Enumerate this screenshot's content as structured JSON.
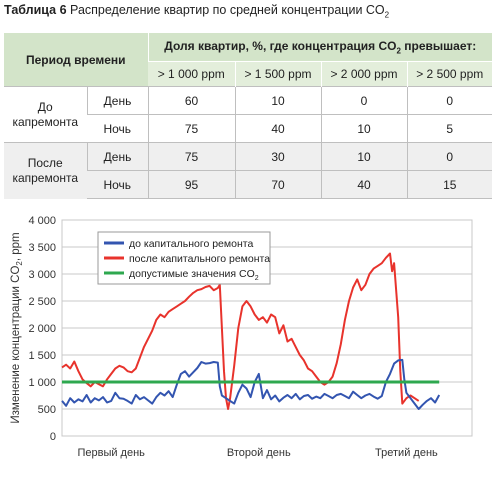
{
  "table": {
    "caption_bold": "Таблица 6",
    "caption_text": "Распределение квартир по средней концентрации CO",
    "caption_sub": "2",
    "header_period": "Период времени",
    "header_share": "Доля квартир, %, где концентрация CO",
    "header_share_sub": "2",
    "header_share_end": " превышает:",
    "thresholds": [
      "> 1 000 ppm",
      "> 1 500 ppm",
      "> 2 000 ppm",
      "> 2 500 ppm"
    ],
    "groups": [
      {
        "period": "До капремонта",
        "rows": [
          {
            "time": "День",
            "values": [
              "60",
              "10",
              "0",
              "0"
            ]
          },
          {
            "time": "Ночь",
            "values": [
              "75",
              "40",
              "10",
              "5"
            ]
          }
        ]
      },
      {
        "period": "После капремонта",
        "rows": [
          {
            "time": "День",
            "values": [
              "75",
              "30",
              "10",
              "0"
            ]
          },
          {
            "time": "Ночь",
            "values": [
              "95",
              "70",
              "40",
              "15"
            ]
          }
        ]
      }
    ]
  },
  "chart_data": {
    "type": "line",
    "ylabel": "Изменение концентрации CO",
    "ylabel_sub": "2",
    "ylabel_end": ", ppm",
    "ylim": [
      0,
      4000
    ],
    "yticks": [
      "0",
      "500",
      "1 000",
      "1 500",
      "2 000",
      "2 500",
      "3 000",
      "3 500",
      "4 000"
    ],
    "xticks": [
      "Первый день",
      "Второй день",
      "Третий день"
    ],
    "legend_position": "top-left",
    "grid": true,
    "series": [
      {
        "name": "до капитального ремонта",
        "color": "#3355b0",
        "points": [
          [
            0.0,
            650
          ],
          [
            0.01,
            560
          ],
          [
            0.02,
            700
          ],
          [
            0.03,
            620
          ],
          [
            0.04,
            680
          ],
          [
            0.05,
            640
          ],
          [
            0.06,
            760
          ],
          [
            0.07,
            620
          ],
          [
            0.08,
            700
          ],
          [
            0.09,
            660
          ],
          [
            0.1,
            720
          ],
          [
            0.11,
            620
          ],
          [
            0.12,
            650
          ],
          [
            0.13,
            800
          ],
          [
            0.14,
            700
          ],
          [
            0.15,
            690
          ],
          [
            0.16,
            650
          ],
          [
            0.17,
            600
          ],
          [
            0.18,
            760
          ],
          [
            0.19,
            680
          ],
          [
            0.2,
            720
          ],
          [
            0.21,
            660
          ],
          [
            0.22,
            600
          ],
          [
            0.23,
            720
          ],
          [
            0.24,
            800
          ],
          [
            0.25,
            750
          ],
          [
            0.26,
            830
          ],
          [
            0.27,
            720
          ],
          [
            0.28,
            950
          ],
          [
            0.29,
            1150
          ],
          [
            0.3,
            1200
          ],
          [
            0.31,
            1100
          ],
          [
            0.32,
            1180
          ],
          [
            0.33,
            1260
          ],
          [
            0.34,
            1370
          ],
          [
            0.35,
            1340
          ],
          [
            0.36,
            1350
          ],
          [
            0.37,
            1370
          ],
          [
            0.38,
            1360
          ],
          [
            0.385,
            920
          ],
          [
            0.39,
            750
          ],
          [
            0.4,
            700
          ],
          [
            0.41,
            650
          ],
          [
            0.42,
            600
          ],
          [
            0.43,
            800
          ],
          [
            0.44,
            950
          ],
          [
            0.45,
            880
          ],
          [
            0.46,
            720
          ],
          [
            0.47,
            1000
          ],
          [
            0.48,
            1150
          ],
          [
            0.49,
            700
          ],
          [
            0.5,
            850
          ],
          [
            0.51,
            680
          ],
          [
            0.52,
            750
          ],
          [
            0.53,
            640
          ],
          [
            0.54,
            710
          ],
          [
            0.55,
            760
          ],
          [
            0.56,
            700
          ],
          [
            0.57,
            780
          ],
          [
            0.58,
            680
          ],
          [
            0.59,
            740
          ],
          [
            0.6,
            760
          ],
          [
            0.61,
            690
          ],
          [
            0.62,
            730
          ],
          [
            0.63,
            700
          ],
          [
            0.64,
            780
          ],
          [
            0.65,
            740
          ],
          [
            0.66,
            700
          ],
          [
            0.67,
            760
          ],
          [
            0.68,
            780
          ],
          [
            0.69,
            740
          ],
          [
            0.7,
            700
          ],
          [
            0.71,
            820
          ],
          [
            0.72,
            760
          ],
          [
            0.73,
            700
          ],
          [
            0.74,
            750
          ],
          [
            0.75,
            780
          ],
          [
            0.76,
            730
          ],
          [
            0.77,
            690
          ],
          [
            0.78,
            740
          ],
          [
            0.79,
            1000
          ],
          [
            0.8,
            1150
          ],
          [
            0.81,
            1340
          ],
          [
            0.82,
            1400
          ],
          [
            0.83,
            1410
          ],
          [
            0.835,
            1050
          ],
          [
            0.84,
            800
          ],
          [
            0.85,
            700
          ],
          [
            0.86,
            600
          ],
          [
            0.87,
            500
          ],
          [
            0.88,
            580
          ],
          [
            0.89,
            650
          ],
          [
            0.9,
            700
          ],
          [
            0.91,
            620
          ],
          [
            0.92,
            760
          ]
        ]
      },
      {
        "name": "после капитального ремонта",
        "color": "#e8332c",
        "points": [
          [
            0.0,
            1270
          ],
          [
            0.01,
            1320
          ],
          [
            0.02,
            1250
          ],
          [
            0.03,
            1380
          ],
          [
            0.04,
            1200
          ],
          [
            0.05,
            1050
          ],
          [
            0.06,
            980
          ],
          [
            0.07,
            920
          ],
          [
            0.08,
            1000
          ],
          [
            0.09,
            960
          ],
          [
            0.1,
            920
          ],
          [
            0.11,
            1050
          ],
          [
            0.12,
            1150
          ],
          [
            0.13,
            1250
          ],
          [
            0.14,
            1300
          ],
          [
            0.15,
            1270
          ],
          [
            0.16,
            1200
          ],
          [
            0.17,
            1180
          ],
          [
            0.18,
            1250
          ],
          [
            0.19,
            1450
          ],
          [
            0.2,
            1650
          ],
          [
            0.21,
            1800
          ],
          [
            0.22,
            1950
          ],
          [
            0.23,
            2150
          ],
          [
            0.24,
            2250
          ],
          [
            0.25,
            2200
          ],
          [
            0.26,
            2300
          ],
          [
            0.27,
            2350
          ],
          [
            0.28,
            2400
          ],
          [
            0.29,
            2450
          ],
          [
            0.3,
            2500
          ],
          [
            0.31,
            2580
          ],
          [
            0.32,
            2650
          ],
          [
            0.33,
            2700
          ],
          [
            0.34,
            2720
          ],
          [
            0.35,
            2760
          ],
          [
            0.36,
            2780
          ],
          [
            0.37,
            2700
          ],
          [
            0.38,
            2740
          ],
          [
            0.385,
            2800
          ],
          [
            0.39,
            2000
          ],
          [
            0.395,
            1200
          ],
          [
            0.4,
            700
          ],
          [
            0.405,
            500
          ],
          [
            0.41,
            700
          ],
          [
            0.42,
            1300
          ],
          [
            0.43,
            2000
          ],
          [
            0.44,
            2400
          ],
          [
            0.45,
            2500
          ],
          [
            0.46,
            2400
          ],
          [
            0.47,
            2250
          ],
          [
            0.48,
            2150
          ],
          [
            0.49,
            2200
          ],
          [
            0.5,
            2100
          ],
          [
            0.51,
            2250
          ],
          [
            0.52,
            2200
          ],
          [
            0.53,
            1900
          ],
          [
            0.54,
            2050
          ],
          [
            0.55,
            1750
          ],
          [
            0.56,
            1800
          ],
          [
            0.57,
            1650
          ],
          [
            0.58,
            1500
          ],
          [
            0.59,
            1400
          ],
          [
            0.6,
            1250
          ],
          [
            0.61,
            1200
          ],
          [
            0.62,
            1100
          ],
          [
            0.63,
            1000
          ],
          [
            0.64,
            950
          ],
          [
            0.65,
            1000
          ],
          [
            0.66,
            1100
          ],
          [
            0.67,
            1350
          ],
          [
            0.68,
            1700
          ],
          [
            0.69,
            2150
          ],
          [
            0.7,
            2500
          ],
          [
            0.71,
            2750
          ],
          [
            0.72,
            2900
          ],
          [
            0.73,
            2700
          ],
          [
            0.74,
            2800
          ],
          [
            0.75,
            3000
          ],
          [
            0.76,
            3100
          ],
          [
            0.77,
            3150
          ],
          [
            0.78,
            3200
          ],
          [
            0.79,
            3300
          ],
          [
            0.8,
            3380
          ],
          [
            0.805,
            3050
          ],
          [
            0.81,
            3200
          ],
          [
            0.82,
            2200
          ],
          [
            0.825,
            1200
          ],
          [
            0.83,
            600
          ],
          [
            0.84,
            700
          ],
          [
            0.85,
            750
          ],
          [
            0.86,
            700
          ],
          [
            0.87,
            650
          ]
        ]
      },
      {
        "name": "допустимые значения CO",
        "name_sub": "2",
        "color": "#2ea84f",
        "points": [
          [
            0.0,
            1000
          ],
          [
            0.92,
            1000
          ]
        ]
      }
    ]
  }
}
